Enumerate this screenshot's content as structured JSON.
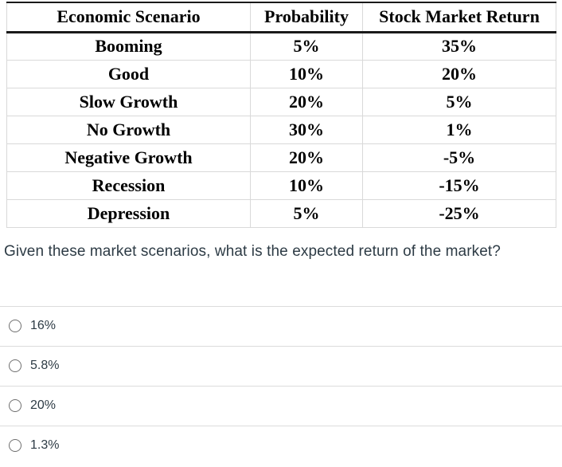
{
  "table": {
    "headers": [
      "Economic Scenario",
      "Probability",
      "Stock Market Return"
    ],
    "rows": [
      [
        "Booming",
        "5%",
        "35%"
      ],
      [
        "Good",
        "10%",
        "20%"
      ],
      [
        "Slow Growth",
        "20%",
        "5%"
      ],
      [
        "No Growth",
        "30%",
        "1%"
      ],
      [
        "Negative Growth",
        "20%",
        "-5%"
      ],
      [
        "Recession",
        "10%",
        "-15%"
      ],
      [
        "Depression",
        "5%",
        "-25%"
      ]
    ]
  },
  "question": {
    "text": "Given these market scenarios, what is the expected return of the market?"
  },
  "options": [
    {
      "label": "16%",
      "selected": false
    },
    {
      "label": "5.8%",
      "selected": false
    },
    {
      "label": "20%",
      "selected": false
    },
    {
      "label": "1.3%",
      "selected": false
    }
  ],
  "colors": {
    "table_text": "#000000",
    "table_grid": "#d9d9d9",
    "header_rule": "#1a1a1a",
    "body_text": "#2d3b45",
    "option_divider": "#dcdcdc",
    "radio_border": "#6f6f6f"
  }
}
